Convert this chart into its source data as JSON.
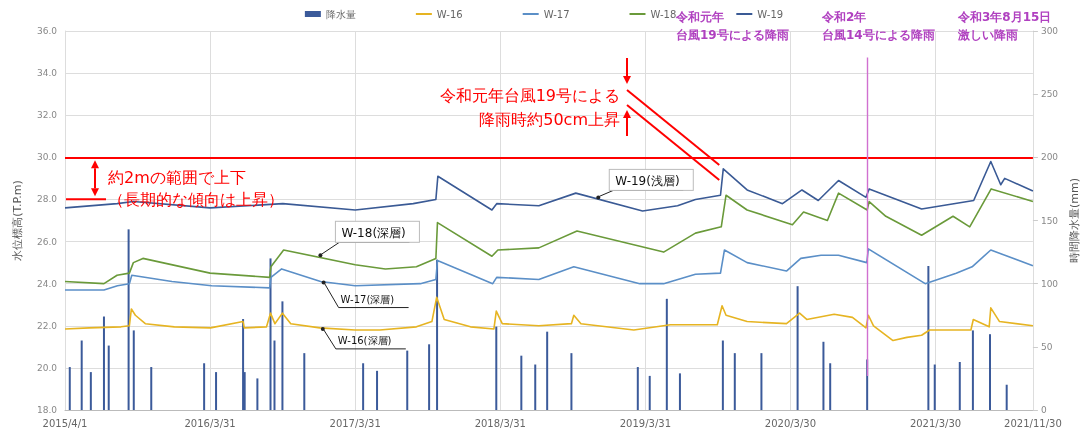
{
  "chart_data": {
    "type": "line",
    "xlabel": null,
    "ylabel": "水位標高(T.P.m)",
    "y2label": "時間降水量(mm)",
    "xlim": [
      "2015-04-01",
      "2021-11-30"
    ],
    "xticks": [
      {
        "value": "2015-04-01",
        "label": "2015/4/1"
      },
      {
        "value": "2016-03-31",
        "label": "2016/3/31"
      },
      {
        "value": "2017-03-31",
        "label": "2017/3/31"
      },
      {
        "value": "2018-03-31",
        "label": "2018/3/31"
      },
      {
        "value": "2019-03-31",
        "label": "2019/3/31"
      },
      {
        "value": "2020-03-30",
        "label": "2020/3/30"
      },
      {
        "value": "2021-03-30",
        "label": "2021/3/30"
      },
      {
        "value": "2021-11-30",
        "label": "2021/11/30"
      }
    ],
    "ylim": [
      18,
      36
    ],
    "yticks": [
      {
        "value": 18,
        "label": "18.0"
      },
      {
        "value": 20,
        "label": "20.0"
      },
      {
        "value": 22,
        "label": "22.0"
      },
      {
        "value": 24,
        "label": "24.0"
      },
      {
        "value": 26,
        "label": "26.0"
      },
      {
        "value": 28,
        "label": "28.0"
      },
      {
        "value": 30,
        "label": "30.0"
      },
      {
        "value": 32,
        "label": "32.0"
      },
      {
        "value": 34,
        "label": "34.0"
      },
      {
        "value": 36,
        "label": "36.0"
      }
    ],
    "y2lim": [
      0,
      300
    ],
    "y2ticks": [
      0,
      50,
      100,
      150,
      200,
      250,
      300
    ],
    "grid": true,
    "legend": "top",
    "series": [
      {
        "name": "降水量",
        "type": "bar",
        "axis": "y2",
        "color": "#3b5a9a",
        "x": [
          "2015-04-13",
          "2015-05-13",
          "2015-06-05",
          "2015-07-08",
          "2015-07-20",
          "2015-09-08",
          "2015-09-21",
          "2015-11-04",
          "2016-03-16",
          "2016-04-15",
          "2016-06-22",
          "2016-06-26",
          "2016-07-28",
          "2016-08-30",
          "2016-09-09",
          "2016-09-29",
          "2016-11-23",
          "2017-04-20",
          "2017-05-25",
          "2017-08-09",
          "2017-10-03",
          "2017-10-23",
          "2018-03-21",
          "2018-05-23",
          "2018-06-27",
          "2018-07-27",
          "2018-09-26",
          "2019-03-12",
          "2019-04-11",
          "2019-05-24",
          "2019-06-26",
          "2019-10-12",
          "2019-11-11",
          "2020-01-17",
          "2020-04-17",
          "2020-06-21",
          "2020-07-08",
          "2020-10-09",
          "2021-03-12",
          "2021-03-28",
          "2021-05-30",
          "2021-07-02",
          "2021-08-14",
          "2021-09-25"
        ],
        "values": [
          34,
          55,
          30,
          74,
          51,
          143,
          63,
          34,
          37,
          30,
          72,
          30,
          25,
          120,
          55,
          86,
          45,
          37,
          31,
          47,
          52,
          119,
          66,
          43,
          36,
          62,
          45,
          34,
          27,
          88,
          29,
          55,
          45,
          45,
          98,
          54,
          37,
          40,
          114,
          36,
          38,
          63,
          60,
          20
        ]
      },
      {
        "name": "W-16",
        "color": "#e6b422",
        "x": [
          "2015-04-01",
          "2015-06-01",
          "2015-08-20",
          "2015-09-10",
          "2015-09-15",
          "2015-09-25",
          "2015-10-20",
          "2016-01-01",
          "2016-04-01",
          "2016-06-22",
          "2016-06-25",
          "2016-08-20",
          "2016-08-30",
          "2016-09-10",
          "2016-09-29",
          "2016-10-20",
          "2017-01-01",
          "2017-03-31",
          "2017-06-01",
          "2017-09-01",
          "2017-10-10",
          "2017-10-22",
          "2017-11-10",
          "2018-01-15",
          "2018-03-15",
          "2018-03-21",
          "2018-04-05",
          "2018-07-06",
          "2018-09-26",
          "2018-10-02",
          "2018-10-20",
          "2019-03-02",
          "2019-06-02",
          "2019-09-28",
          "2019-10-10",
          "2019-10-20",
          "2019-12-12",
          "2020-03-20",
          "2020-04-22",
          "2020-05-10",
          "2020-07-18",
          "2020-09-02",
          "2020-10-06",
          "2020-10-12",
          "2020-10-25",
          "2020-12-13",
          "2021-01-17",
          "2021-02-23",
          "2021-03-15",
          "2021-06-27",
          "2021-07-03",
          "2021-08-12",
          "2021-08-16",
          "2021-09-07",
          "2021-11-30"
        ],
        "values": [
          21.85,
          21.9,
          21.95,
          22.0,
          22.8,
          22.5,
          22.1,
          21.95,
          21.9,
          22.2,
          21.9,
          21.95,
          22.6,
          22.1,
          22.6,
          22.1,
          21.9,
          21.8,
          21.8,
          21.95,
          22.2,
          23.35,
          22.3,
          21.95,
          21.85,
          22.7,
          22.1,
          22.0,
          22.1,
          22.5,
          22.1,
          21.8,
          22.05,
          22.05,
          22.95,
          22.5,
          22.2,
          22.1,
          22.6,
          22.3,
          22.55,
          22.4,
          21.9,
          22.5,
          22.0,
          21.3,
          21.45,
          21.55,
          21.8,
          21.8,
          22.3,
          21.95,
          22.85,
          22.2,
          22.0
        ]
      },
      {
        "name": "W-17",
        "color": "#5b8fc7",
        "x": [
          "2015-04-01",
          "2015-07-08",
          "2015-08-11",
          "2015-09-10",
          "2015-09-16",
          "2015-12-26",
          "2016-04-04",
          "2016-08-28",
          "2016-08-31",
          "2016-09-27",
          "2017-01-03",
          "2017-03-31",
          "2017-09-11",
          "2017-10-20",
          "2017-10-24",
          "2018-03-12",
          "2018-03-22",
          "2018-07-06",
          "2018-10-02",
          "2019-03-17",
          "2019-05-16",
          "2019-08-04",
          "2019-10-06",
          "2019-10-16",
          "2019-12-12",
          "2020-03-20",
          "2020-04-25",
          "2020-06-15",
          "2020-07-29",
          "2020-10-08",
          "2020-10-12",
          "2021-03-04",
          "2021-05-21",
          "2021-06-30",
          "2021-08-16",
          "2021-11-30"
        ],
        "values": [
          23.7,
          23.7,
          23.9,
          24.0,
          24.4,
          24.1,
          23.9,
          23.8,
          24.3,
          24.7,
          24.1,
          23.9,
          24.0,
          24.2,
          25.1,
          24.0,
          24.3,
          24.2,
          24.8,
          24.0,
          24.0,
          24.45,
          24.5,
          25.6,
          25.0,
          24.6,
          25.2,
          25.35,
          25.35,
          25.0,
          25.65,
          24.0,
          24.5,
          24.8,
          25.6,
          24.85
        ]
      },
      {
        "name": "W-18",
        "color": "#6a9a3a",
        "x": [
          "2015-04-01",
          "2015-07-08",
          "2015-08-10",
          "2015-09-10",
          "2015-09-20",
          "2015-10-14",
          "2016-03-31",
          "2016-08-28",
          "2016-08-31",
          "2016-10-02",
          "2017-03-31",
          "2017-06-15",
          "2017-09-01",
          "2017-10-20",
          "2017-10-24",
          "2018-03-10",
          "2018-03-25",
          "2018-07-06",
          "2018-10-10",
          "2019-05-16",
          "2019-08-04",
          "2019-10-08",
          "2019-10-20",
          "2019-12-12",
          "2020-04-04",
          "2020-05-02",
          "2020-07-01",
          "2020-07-29",
          "2020-10-09",
          "2020-10-14",
          "2020-11-25",
          "2021-02-23",
          "2021-05-13",
          "2021-06-24",
          "2021-08-17",
          "2021-11-30"
        ],
        "values": [
          24.1,
          24.0,
          24.4,
          24.5,
          25.0,
          25.2,
          24.5,
          24.3,
          24.8,
          25.6,
          24.9,
          24.7,
          24.8,
          25.2,
          26.9,
          25.3,
          25.6,
          25.7,
          26.5,
          25.5,
          26.4,
          26.7,
          28.2,
          27.5,
          26.8,
          27.4,
          27.0,
          28.3,
          27.5,
          27.9,
          27.2,
          26.3,
          27.2,
          26.7,
          28.5,
          27.9
        ]
      },
      {
        "name": "W-19",
        "color": "#3a5a95",
        "x": [
          "2015-04-01",
          "2015-08-10",
          "2015-09-20",
          "2016-03-31",
          "2016-09-30",
          "2017-03-31",
          "2017-08-24",
          "2017-10-20",
          "2017-10-25",
          "2018-03-10",
          "2018-03-22",
          "2018-07-06",
          "2018-10-07",
          "2019-03-24",
          "2019-06-20",
          "2019-08-04",
          "2019-10-06",
          "2019-10-13",
          "2019-12-12",
          "2020-03-10",
          "2020-04-28",
          "2020-06-08",
          "2020-07-29",
          "2020-10-06",
          "2020-10-14",
          "2021-02-23",
          "2021-07-04",
          "2021-08-16",
          "2021-09-10",
          "2021-09-20",
          "2021-11-30"
        ],
        "values": [
          27.6,
          27.8,
          27.9,
          27.6,
          27.8,
          27.5,
          27.8,
          28.0,
          29.1,
          27.5,
          27.8,
          27.7,
          28.3,
          27.45,
          27.7,
          28.0,
          28.2,
          29.45,
          28.45,
          27.8,
          28.45,
          27.95,
          28.9,
          28.1,
          28.5,
          27.55,
          27.95,
          29.8,
          28.7,
          29.0,
          28.4
        ]
      }
    ],
    "ref_lines": [
      {
        "axis": "y",
        "value": 30,
        "color": "#ff0000"
      },
      {
        "axis": "x",
        "value": "2020-10-10",
        "color": "#d070d0"
      }
    ],
    "annotations": [
      "約2mの範囲で上下（長期的な傾向は上昇）",
      {
        "text": "令和元年台風19号による降雨時約50cm上昇",
        "x": "2019-10-13",
        "y": 29.45
      },
      "令和元年台風19号による降雨",
      "令和2年台風14号による降雨",
      "令和3年8月15日激しい降雨",
      {
        "text": "W-19(浅層)",
        "x": "2018-11-25",
        "y": 28.05
      },
      {
        "text": "W-18(深層)",
        "x": "2016-12-26",
        "y": 25.3
      },
      {
        "text": "W-17(深層)",
        "x": "2017-01-03",
        "y": 24.1
      },
      {
        "text": "W-16(深層)",
        "x": "2017-01-01",
        "y": 21.9
      }
    ]
  }
}
